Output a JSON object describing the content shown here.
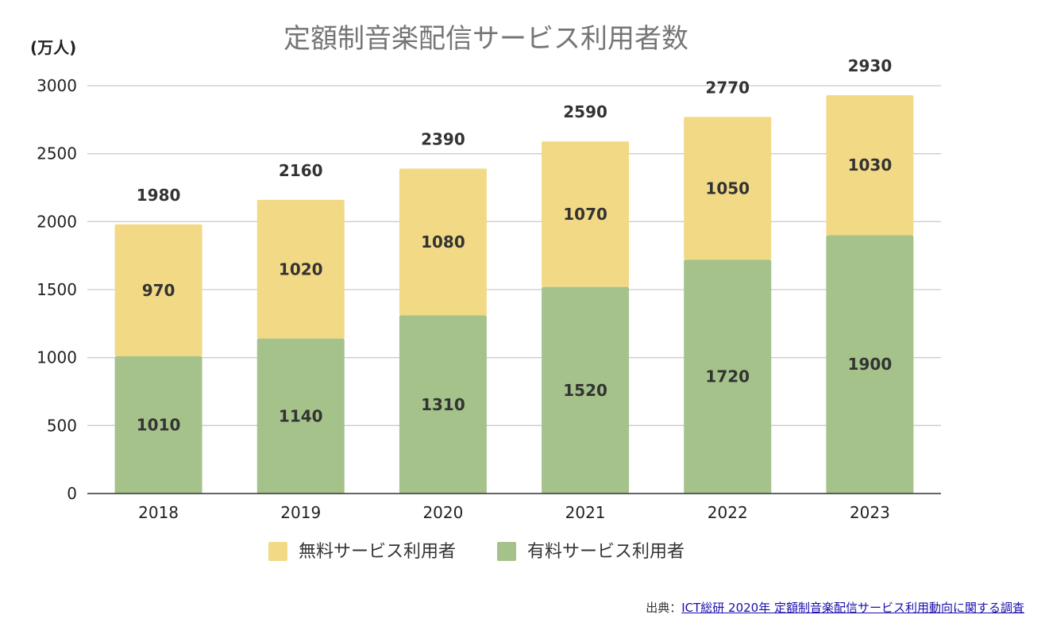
{
  "chart_data": {
    "type": "bar",
    "stacked": true,
    "title": "定額制音楽配信サービス利用者数",
    "unit_label": "(万人)",
    "categories": [
      "2018",
      "2019",
      "2020",
      "2021",
      "2022",
      "2023"
    ],
    "series": [
      {
        "name": "有料サービス利用者",
        "color": "#a4c28a",
        "values": [
          1010,
          1140,
          1310,
          1520,
          1720,
          1900
        ]
      },
      {
        "name": "無料サービス利用者",
        "color": "#f2d985",
        "values": [
          970,
          1020,
          1080,
          1070,
          1050,
          1030
        ]
      }
    ],
    "totals": [
      1980,
      2160,
      2390,
      2590,
      2770,
      2930
    ],
    "ylim": [
      0,
      3000
    ],
    "yticks": [
      0,
      500,
      1000,
      1500,
      2000,
      2500,
      3000
    ],
    "grid": true,
    "legend_order": [
      "無料サービス利用者",
      "有料サービス利用者"
    ],
    "legend_position": "bottom"
  },
  "source": {
    "prefix": "出典：",
    "link_text": "ICT総研 2020年 定額制音楽配信サービス利用動向に関する調査"
  }
}
